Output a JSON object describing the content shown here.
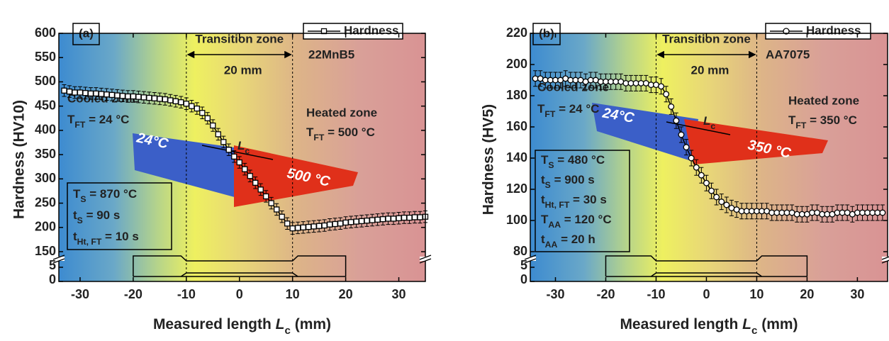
{
  "chart_data": [
    {
      "type": "scatter",
      "panel_label": "(a)",
      "material": "22MnB5",
      "y_label": "Hardness (HV10)",
      "x_label": {
        "main": "Measured length ",
        "var": "L",
        "sub": "c",
        "rest": " (mm)"
      },
      "xlim": [
        -34,
        35
      ],
      "xticks": [
        -30,
        -20,
        -10,
        0,
        10,
        20,
        30
      ],
      "ylim": [
        150,
        600
      ],
      "yticks": [
        150,
        200,
        250,
        300,
        350,
        400,
        450,
        500,
        550,
        600
      ],
      "lower_ylim": [
        0,
        5
      ],
      "lower_yticks": [
        0,
        5
      ],
      "zone_lines": [
        -10,
        10
      ],
      "transition_label": "Transition zone",
      "zone_width_label": "20 mm",
      "cooled_zone": {
        "label": "Cooled zone",
        "temp": {
          "main": "T",
          "sub": "FT",
          "rest": " = 24 °C"
        }
      },
      "heated_zone": {
        "label": "Heated zone",
        "temp": {
          "main": "T",
          "sub": "FT",
          "rest": " = 500 °C"
        }
      },
      "params": [
        {
          "main": "T",
          "sub": "S",
          "rest": " = 870 °C"
        },
        {
          "main": "t",
          "sub": "S",
          "rest": " = 90 s"
        },
        {
          "main": "t",
          "sub": "Ht, FT",
          "rest": " = 10 s"
        }
      ],
      "specimen_labels": {
        "cold": "24°C",
        "hot": "500 °C",
        "length": {
          "var": "L",
          "sub": "c"
        }
      },
      "series": [
        {
          "name": "Hardness",
          "marker": "square",
          "color": "#000000",
          "error": 12,
          "x": [
            -33,
            -32,
            -31,
            -30,
            -29,
            -28,
            -27,
            -26,
            -25,
            -24,
            -23,
            -22,
            -21,
            -20,
            -19,
            -18,
            -17,
            -16,
            -15,
            -14,
            -13,
            -12,
            -11,
            -10,
            -9,
            -8,
            -7,
            -6,
            -5,
            -4,
            -3,
            -2,
            -1,
            0,
            1,
            2,
            3,
            4,
            5,
            6,
            7,
            8,
            9,
            10,
            11,
            12,
            13,
            14,
            15,
            16,
            17,
            18,
            19,
            20,
            21,
            22,
            23,
            24,
            25,
            26,
            27,
            28,
            29,
            30,
            31,
            32,
            33,
            34,
            35
          ],
          "values": [
            482,
            480,
            478,
            478,
            477,
            476,
            476,
            475,
            474,
            473,
            472,
            471,
            470,
            470,
            469,
            468,
            467,
            466,
            465,
            464,
            462,
            460,
            458,
            455,
            450,
            445,
            436,
            425,
            410,
            392,
            376,
            360,
            346,
            334,
            320,
            306,
            292,
            278,
            264,
            250,
            237,
            222,
            208,
            198,
            199,
            200,
            201,
            202,
            203,
            204,
            206,
            207,
            208,
            210,
            211,
            212,
            213,
            214,
            215,
            216,
            217,
            218,
            218,
            219,
            220,
            220,
            221,
            221,
            222
          ]
        }
      ],
      "specimen": {
        "x": [
          -20,
          -20,
          -11,
          -10,
          10,
          11,
          20,
          20,
          -20
        ],
        "y": [
          1.75,
          9,
          9,
          7.25,
          7.25,
          9,
          9,
          1.75,
          1.75
        ]
      },
      "specimen_inner": {
        "x": [
          -11,
          -10,
          10,
          11
        ],
        "y": [
          1.75,
          3,
          3,
          1.75
        ]
      }
    },
    {
      "type": "scatter",
      "panel_label": "(b)",
      "material": "AA7075",
      "y_label": "Hardness (HV5)",
      "x_label": {
        "main": "Measured length ",
        "var": "L",
        "sub": "c",
        "rest": " (mm)"
      },
      "xlim": [
        -35,
        36
      ],
      "xticks": [
        -30,
        -20,
        -10,
        0,
        10,
        20,
        30
      ],
      "ylim": [
        80,
        220
      ],
      "yticks": [
        80,
        100,
        120,
        140,
        160,
        180,
        200,
        220
      ],
      "lower_ylim": [
        0,
        5
      ],
      "lower_yticks": [
        0,
        5
      ],
      "zone_lines": [
        -10,
        10
      ],
      "transition_label": "Transition zone",
      "zone_width_label": "20 mm",
      "cooled_zone": {
        "label": "Cooled zone",
        "temp": {
          "main": "T",
          "sub": "FT",
          "rest": " = 24 °C"
        }
      },
      "heated_zone": {
        "label": "Heated zone",
        "temp": {
          "main": "T",
          "sub": "FT",
          "rest": " = 350 °C"
        }
      },
      "params": [
        {
          "main": "T",
          "sub": "S",
          "rest": " = 480 °C"
        },
        {
          "main": "t",
          "sub": "S",
          "rest": " = 900 s"
        },
        {
          "main": "t",
          "sub": "Ht, FT",
          "rest": " = 30 s"
        },
        {
          "main": "T",
          "sub": "AA",
          "rest": " = 120 °C"
        },
        {
          "main": "t",
          "sub": "AA",
          "rest": " = 20 h"
        }
      ],
      "specimen_labels": {
        "cold": "24°C",
        "hot": "350 °C",
        "length": {
          "var": "L",
          "sub": "c"
        }
      },
      "series": [
        {
          "name": "Hardness",
          "marker": "circle",
          "color": "#000000",
          "error": 5,
          "x": [
            -34,
            -33,
            -32,
            -31,
            -30,
            -29,
            -28,
            -27,
            -26,
            -25,
            -24,
            -23,
            -22,
            -21,
            -20,
            -19,
            -18,
            -17,
            -16,
            -15,
            -14,
            -13,
            -12,
            -11,
            -10,
            -9,
            -8,
            -7,
            -6,
            -5,
            -4,
            -3,
            -2,
            -1,
            0,
            1,
            2,
            3,
            4,
            5,
            6,
            7,
            8,
            9,
            10,
            11,
            12,
            13,
            14,
            15,
            16,
            17,
            18,
            19,
            20,
            21,
            22,
            23,
            24,
            25,
            26,
            27,
            28,
            29,
            30,
            31,
            32,
            33,
            34,
            35
          ],
          "values": [
            191,
            191,
            190,
            190,
            190,
            190,
            191,
            190,
            190,
            190,
            189,
            190,
            190,
            189,
            189,
            189,
            189,
            189,
            188,
            188,
            188,
            188,
            188,
            187,
            187,
            186,
            181,
            173,
            164,
            155,
            147,
            140,
            134,
            129,
            124,
            119,
            115,
            112,
            110,
            108,
            107,
            106,
            106,
            106,
            106,
            106,
            106,
            105,
            105,
            105,
            105,
            105,
            104,
            104,
            104,
            105,
            105,
            104,
            104,
            104,
            105,
            105,
            105,
            104,
            105,
            105,
            105,
            105,
            105,
            105
          ]
        }
      ],
      "specimen": {
        "x": [
          -20,
          -20,
          -11,
          -10,
          10,
          11,
          20,
          20,
          -20
        ],
        "y": [
          1.75,
          9,
          9,
          7.25,
          7.25,
          9,
          9,
          1.75,
          1.75
        ]
      },
      "specimen_inner": {
        "x": [
          -11,
          -10,
          10,
          11
        ],
        "y": [
          1.75,
          3,
          3,
          1.75
        ]
      }
    }
  ]
}
